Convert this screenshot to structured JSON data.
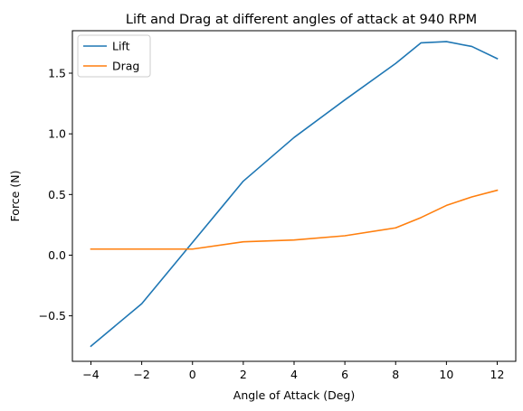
{
  "chart_data": {
    "type": "line",
    "title": "Lift and Drag at different angles of attack at 940 RPM",
    "xlabel": "Angle of Attack (Deg)",
    "ylabel": "Force (N)",
    "xlim": [
      -4.73,
      12.73
    ],
    "ylim": [
      -0.875,
      1.85
    ],
    "xticks": [
      -4,
      -2,
      0,
      2,
      4,
      6,
      8,
      10,
      12
    ],
    "xtick_labels": [
      "−4",
      "−2",
      "0",
      "2",
      "4",
      "6",
      "8",
      "10",
      "12"
    ],
    "yticks": [
      -0.5,
      0.0,
      0.5,
      1.0,
      1.5
    ],
    "ytick_labels": [
      "−0.5",
      "0.0",
      "0.5",
      "1.0",
      "1.5"
    ],
    "grid": false,
    "legend_position": "top-left",
    "series": [
      {
        "name": "Lift",
        "color": "#1f77b4",
        "x": [
          -4,
          -2,
          2,
          4,
          6,
          8,
          9,
          10,
          11,
          12
        ],
        "y": [
          -0.75,
          -0.4,
          0.61,
          0.97,
          1.28,
          1.58,
          1.75,
          1.76,
          1.72,
          1.62
        ]
      },
      {
        "name": "Drag",
        "color": "#ff7f0e",
        "x": [
          -4,
          -2,
          0,
          2,
          4,
          6,
          8,
          9,
          10,
          11,
          12
        ],
        "y": [
          0.05,
          0.05,
          0.05,
          0.11,
          0.125,
          0.16,
          0.225,
          0.31,
          0.41,
          0.48,
          0.535
        ]
      }
    ]
  }
}
